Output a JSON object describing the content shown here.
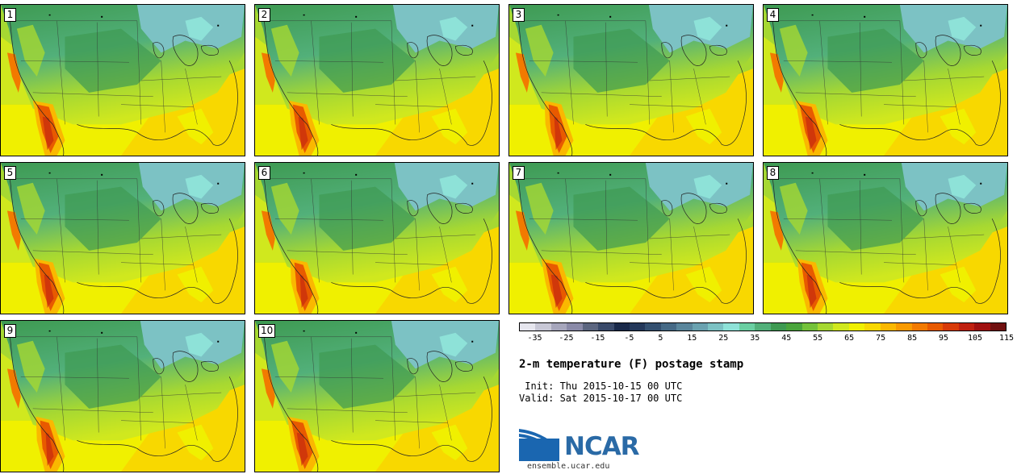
{
  "panels": [
    {
      "label": "1"
    },
    {
      "label": "2"
    },
    {
      "label": "3"
    },
    {
      "label": "4"
    },
    {
      "label": "5"
    },
    {
      "label": "6"
    },
    {
      "label": "7"
    },
    {
      "label": "8"
    },
    {
      "label": "9"
    },
    {
      "label": "10"
    }
  ],
  "colorbar": {
    "colors": [
      "#e6e6ee",
      "#c8c8d6",
      "#a6a6bc",
      "#8a8aa8",
      "#5c6680",
      "#3a4a6a",
      "#1a2a4a",
      "#24385a",
      "#345070",
      "#466a86",
      "#5a869c",
      "#6aa2b0",
      "#7cc2c4",
      "#8ee2d8",
      "#6acfa2",
      "#52b07a",
      "#3e9a52",
      "#4aa53c",
      "#74c23a",
      "#a6d832",
      "#d0e81e",
      "#f0f000",
      "#f8d800",
      "#fab800",
      "#f89a00",
      "#f27a00",
      "#e85a00",
      "#d83a08",
      "#c02010",
      "#a01010",
      "#701010"
    ],
    "tick_labels": [
      "-35",
      "-25",
      "-15",
      "-5",
      "5",
      "15",
      "25",
      "35",
      "45",
      "55",
      "65",
      "75",
      "85",
      "95",
      "105",
      "115"
    ]
  },
  "title": "2-m temperature (F) postage stamp",
  "init_text": " Init: Thu 2015-10-15 00 UTC",
  "valid_text": "Valid: Sat 2015-10-17 00 UTC",
  "logo_text": "NCAR",
  "site": "ensemble.ucar.edu"
}
